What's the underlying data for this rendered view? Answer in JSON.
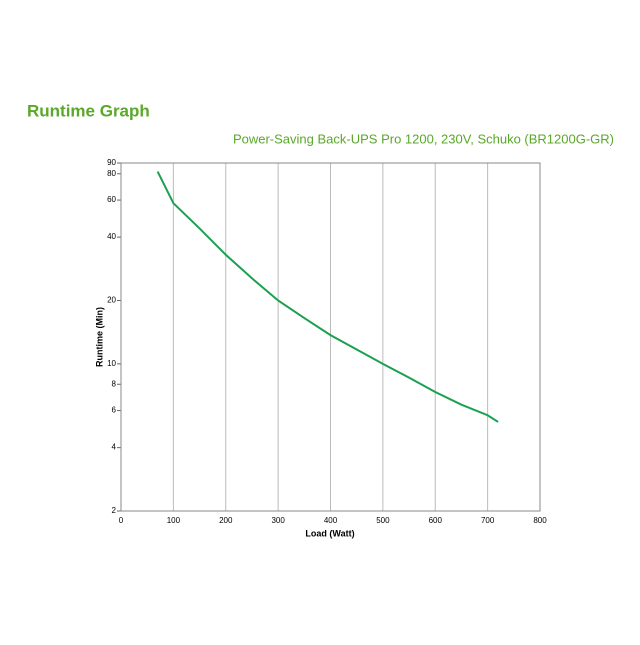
{
  "chart_data": {
    "type": "line",
    "title": "Runtime Graph",
    "subtitle": "Power-Saving Back-UPS Pro 1200, 230V, Schuko (BR1200G-GR)",
    "x_label": "Load (Watt)",
    "y_label": "Runtime (Min)",
    "x": [
      70,
      100,
      150,
      200,
      250,
      300,
      350,
      400,
      450,
      500,
      550,
      600,
      650,
      700,
      720
    ],
    "series": [
      {
        "name": "Runtime",
        "color": "#1aa050",
        "values": [
          82,
          58,
          44,
          33,
          25.5,
          20,
          16.5,
          13.7,
          11.7,
          10,
          8.6,
          7.35,
          6.4,
          5.7,
          5.3
        ]
      }
    ],
    "xlim": [
      0,
      800
    ],
    "xticks": [
      0,
      100,
      200,
      300,
      400,
      500,
      600,
      700,
      800
    ],
    "ylim": [
      2,
      90
    ],
    "yticks": [
      2,
      4,
      6,
      8,
      10,
      20,
      40,
      60,
      80,
      90
    ],
    "y_scale": "log",
    "grid": "x",
    "title_color": "#5aa82a"
  }
}
